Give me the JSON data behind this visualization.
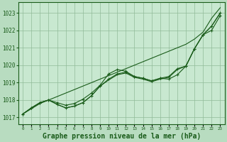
{
  "background_color": "#b8dcc0",
  "plot_bg_color": "#c8e8d0",
  "grid_color": "#90bb98",
  "line_color": "#1a5c1a",
  "xlabel": "Graphe pression niveau de la mer (hPa)",
  "xlabel_fontsize": 7,
  "ylim": [
    1016.6,
    1023.6
  ],
  "xlim": [
    -0.5,
    23.5
  ],
  "yticks": [
    1017,
    1018,
    1019,
    1020,
    1021,
    1022,
    1023
  ],
  "xticks": [
    0,
    1,
    2,
    3,
    4,
    5,
    6,
    7,
    8,
    9,
    10,
    11,
    12,
    13,
    14,
    15,
    16,
    17,
    18,
    19,
    20,
    21,
    22,
    23
  ],
  "line1": [
    1017.2,
    1017.5,
    1017.8,
    1018.0,
    1018.2,
    1018.4,
    1018.6,
    1018.8,
    1019.0,
    1019.2,
    1019.4,
    1019.6,
    1019.8,
    1020.0,
    1020.2,
    1020.4,
    1020.6,
    1020.8,
    1021.0,
    1021.2,
    1021.5,
    1021.9,
    1022.7,
    1023.3
  ],
  "line2_x": [
    0,
    1,
    2,
    3,
    4,
    5,
    6,
    7,
    8,
    9,
    10,
    11,
    12,
    13,
    14,
    15,
    16,
    17,
    18,
    19,
    20,
    21,
    22,
    23
  ],
  "line2_y": [
    1017.2,
    1017.55,
    1017.85,
    1018.0,
    1017.85,
    1017.7,
    1017.8,
    1018.05,
    1018.4,
    1018.85,
    1019.5,
    1019.75,
    1019.65,
    1019.35,
    1019.25,
    1019.1,
    1019.25,
    1019.2,
    1019.45,
    1019.95,
    1020.95,
    1021.75,
    1022.0,
    1022.85
  ],
  "line3_x": [
    0,
    1,
    2,
    3,
    4,
    5,
    6,
    7,
    8,
    9,
    10,
    11,
    12,
    13,
    14,
    15,
    16,
    17,
    18,
    19,
    20,
    21,
    22,
    23
  ],
  "line3_y": [
    1017.2,
    1017.55,
    1017.85,
    1018.0,
    1017.75,
    1017.55,
    1017.65,
    1017.85,
    1018.25,
    1018.8,
    1019.2,
    1019.5,
    1019.6,
    1019.35,
    1019.25,
    1019.1,
    1019.25,
    1019.35,
    1019.8,
    1019.95,
    1020.95,
    1021.75,
    1022.25,
    1023.0
  ],
  "line4_x": [
    0,
    1,
    2,
    3,
    4,
    5,
    6,
    7,
    8,
    9,
    10,
    11,
    12,
    13,
    14,
    15,
    16,
    17,
    18,
    19,
    20,
    21,
    22,
    23
  ],
  "line4_y": [
    1017.2,
    1017.55,
    1017.85,
    1018.0,
    1017.75,
    1017.55,
    1017.65,
    1017.85,
    1018.25,
    1018.8,
    1019.15,
    1019.45,
    1019.55,
    1019.3,
    1019.2,
    1019.05,
    1019.2,
    1019.3,
    1019.75,
    1019.95,
    1020.95,
    1021.75,
    1022.25,
    1023.0
  ],
  "markers2_x": [
    0,
    1,
    3,
    4,
    6,
    7,
    8,
    9,
    10,
    11,
    12,
    13,
    14,
    15,
    16,
    17,
    18,
    19,
    20,
    21,
    22,
    23
  ],
  "markers2_y": [
    1017.2,
    1017.55,
    1018.0,
    1017.85,
    1017.8,
    1018.05,
    1018.4,
    1018.85,
    1019.5,
    1019.75,
    1019.65,
    1019.35,
    1019.25,
    1019.1,
    1019.25,
    1019.2,
    1019.45,
    1019.95,
    1020.95,
    1021.75,
    1022.0,
    1022.85
  ],
  "markers3_x": [
    0,
    1,
    3,
    5,
    6,
    7,
    8,
    9,
    10,
    11,
    12,
    13,
    14,
    15,
    16,
    17,
    18,
    19,
    20,
    21,
    22,
    23
  ],
  "markers3_y": [
    1017.2,
    1017.55,
    1018.0,
    1017.55,
    1017.65,
    1017.85,
    1018.25,
    1018.8,
    1019.2,
    1019.5,
    1019.6,
    1019.35,
    1019.25,
    1019.1,
    1019.25,
    1019.35,
    1019.8,
    1019.95,
    1020.95,
    1021.75,
    1022.25,
    1023.0
  ]
}
